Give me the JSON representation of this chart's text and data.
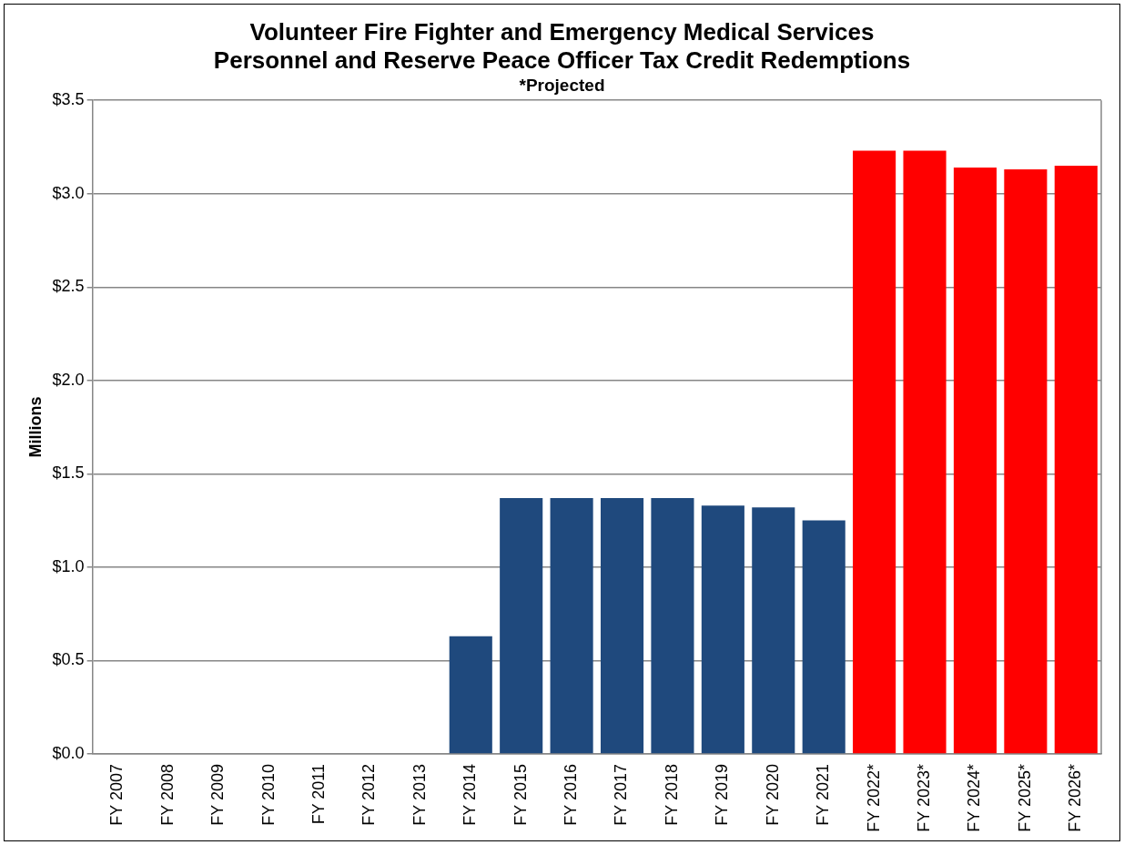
{
  "chart_data": {
    "type": "bar",
    "title": [
      "Volunteer Fire Fighter and Emergency Medical Services",
      "Personnel and Reserve Peace Officer Tax Credit Redemptions"
    ],
    "subtitle": "*Projected",
    "ylabel": "Millions",
    "categories": [
      "FY 2007",
      "FY 2008",
      "FY 2009",
      "FY 2010",
      "FY 2011",
      "FY 2012",
      "FY 2013",
      "FY 2014",
      "FY 2015",
      "FY 2016",
      "FY 2017",
      "FY 2018",
      "FY 2019",
      "FY 2020",
      "FY 2021",
      "FY 2022*",
      "FY 2023*",
      "FY 2024*",
      "FY 2025*",
      "FY 2026*"
    ],
    "values": [
      0,
      0,
      0,
      0,
      0,
      0,
      0,
      0.63,
      1.37,
      1.37,
      1.37,
      1.37,
      1.33,
      1.32,
      1.25,
      3.23,
      3.23,
      3.14,
      3.13,
      3.15
    ],
    "colors": [
      "#1f497d",
      "#1f497d",
      "#1f497d",
      "#1f497d",
      "#1f497d",
      "#1f497d",
      "#1f497d",
      "#1f497d",
      "#1f497d",
      "#1f497d",
      "#1f497d",
      "#1f497d",
      "#1f497d",
      "#1f497d",
      "#1f497d",
      "#ff0000",
      "#ff0000",
      "#ff0000",
      "#ff0000",
      "#ff0000"
    ],
    "ylim": [
      0,
      3.5
    ],
    "yticks": [
      {
        "value": 0,
        "label": "$0.0"
      },
      {
        "value": 0.5,
        "label": "$0.5"
      },
      {
        "value": 1,
        "label": "$1.0"
      },
      {
        "value": 1.5,
        "label": "$1.5"
      },
      {
        "value": 2,
        "label": "$2.0"
      },
      {
        "value": 2.5,
        "label": "$2.5"
      },
      {
        "value": 3,
        "label": "$3.0"
      },
      {
        "value": 3.5,
        "label": "$3.5"
      }
    ],
    "grid": "y",
    "legend": false
  }
}
